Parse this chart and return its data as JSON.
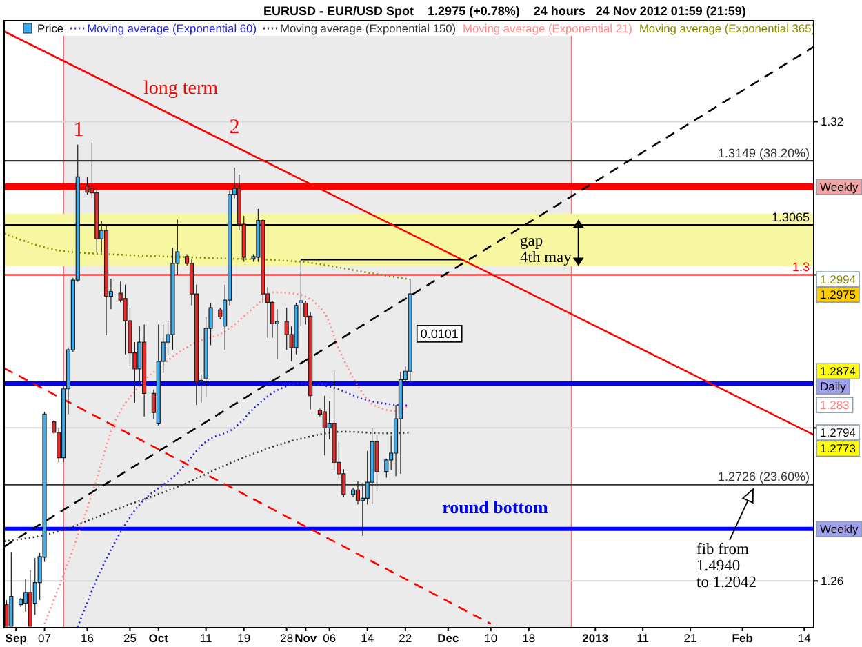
{
  "chart_data": {
    "type": "candlestick",
    "title": "EURUSD - EUR/USD Spot    1.2975 (+0.78%)    24 hours   24 Nov 2012 01:59 (21:59)",
    "xlim": [
      "2012-08-29T12:00",
      "2013-02-16"
    ],
    "xticks": [
      {
        "value": "2012-09-01",
        "label": "Sep"
      },
      {
        "value": "2012-09-07",
        "label": "07"
      },
      {
        "value": "2012-09-16",
        "label": "16"
      },
      {
        "value": "2012-09-25",
        "label": "25"
      },
      {
        "value": "2012-10-01",
        "label": "Oct"
      },
      {
        "value": "2012-10-11",
        "label": "11"
      },
      {
        "value": "2012-10-19",
        "label": "19"
      },
      {
        "value": "2012-10-28",
        "label": "28"
      },
      {
        "value": "2012-11-01",
        "label": "Nov"
      },
      {
        "value": "2012-11-06",
        "label": "06"
      },
      {
        "value": "2012-11-14",
        "label": "14"
      },
      {
        "value": "2012-11-22",
        "label": "22"
      },
      {
        "value": "2012-12-01",
        "label": "Dec"
      },
      {
        "value": "2012-12-10",
        "label": "10"
      },
      {
        "value": "2012-12-18",
        "label": "18"
      },
      {
        "value": "2013-01-01",
        "label": "2013"
      },
      {
        "value": "2013-01-11",
        "label": "11"
      },
      {
        "value": "2013-01-21",
        "label": "21"
      },
      {
        "value": "2013-02-01",
        "label": "Feb"
      },
      {
        "value": "2013-02-14",
        "label": "14"
      }
    ],
    "ylim": [
      1.2539,
      1.3332
    ],
    "yticks": [
      1.26,
      {
        "value": 1.28,
        "label": null
      },
      {
        "value": 1.3,
        "label": null
      },
      1.32
    ],
    "grid": "y",
    "legend": "top left",
    "bands": [
      {
        "axis": "x",
        "from": "2012-09-11",
        "to": "2012-12-27",
        "color": "#ebebeb"
      },
      {
        "axis": "y",
        "from": 1.3011,
        "to": 1.308,
        "color": "#f7f7a1"
      }
    ],
    "ref_lines": [
      {
        "axis": "y",
        "value": 1.3149,
        "label": "1.3149 (38.20%)",
        "color": "#333333"
      },
      {
        "axis": "y",
        "value": 1.3115,
        "label": "Weekly",
        "color": "#ff0000"
      },
      {
        "axis": "y",
        "value": 1.3065,
        "label": "1.3065",
        "color": "#000000"
      },
      {
        "axis": "y",
        "value": 1.3,
        "label": "1.3",
        "color": "#ff0000"
      },
      {
        "axis": "y",
        "value": 1.2858,
        "label": "Daily",
        "color": "#0000ff"
      },
      {
        "axis": "y",
        "value": 1.2726,
        "label": "1.2726 (23.60%)",
        "color": "#333333"
      },
      {
        "axis": "y",
        "value": 1.2668,
        "label": "Weekly",
        "color": "#0000ff"
      }
    ],
    "series": [
      {
        "name": "Price",
        "x": [
          "2012-08-30",
          "2012-08-31",
          "2012-09-02",
          "2012-09-03",
          "2012-09-04",
          "2012-09-05",
          "2012-09-06",
          "2012-09-07",
          "2012-09-09",
          "2012-09-10",
          "2012-09-11",
          "2012-09-12",
          "2012-09-13",
          "2012-09-14",
          "2012-09-16",
          "2012-09-17",
          "2012-09-18",
          "2012-09-19",
          "2012-09-20",
          "2012-09-21",
          "2012-09-23",
          "2012-09-24",
          "2012-09-25",
          "2012-09-26",
          "2012-09-27",
          "2012-09-28",
          "2012-09-30",
          "2012-10-01",
          "2012-10-02",
          "2012-10-03",
          "2012-10-04",
          "2012-10-05",
          "2012-10-07",
          "2012-10-08",
          "2012-10-09",
          "2012-10-10",
          "2012-10-11",
          "2012-10-12",
          "2012-10-14",
          "2012-10-15",
          "2012-10-16",
          "2012-10-17",
          "2012-10-18",
          "2012-10-19",
          "2012-10-21",
          "2012-10-22",
          "2012-10-23",
          "2012-10-24",
          "2012-10-25",
          "2012-10-26",
          "2012-10-28",
          "2012-10-29",
          "2012-10-30",
          "2012-10-31",
          "2012-11-01",
          "2012-11-02",
          "2012-11-04",
          "2012-11-05",
          "2012-11-06",
          "2012-11-07",
          "2012-11-08",
          "2012-11-09",
          "2012-11-11",
          "2012-11-12",
          "2012-11-13",
          "2012-11-14",
          "2012-11-15",
          "2012-11-16",
          "2012-11-18",
          "2012-11-19",
          "2012-11-20",
          "2012-11-21",
          "2012-11-22",
          "2012-11-23"
        ],
        "ohlc": [
          [
            1.2569,
            1.2575,
            1.2541,
            1.2541
          ],
          [
            1.2541,
            1.2638,
            1.2541,
            1.258
          ],
          [
            1.2569,
            1.2578,
            1.2566,
            1.2576
          ],
          [
            1.2571,
            1.2602,
            1.256,
            1.2585
          ],
          [
            1.2585,
            1.2614,
            1.2541,
            1.2541
          ],
          [
            1.2571,
            1.263,
            1.2556,
            1.2598
          ],
          [
            1.2598,
            1.2637,
            1.2575,
            1.2632
          ],
          [
            1.2631,
            1.2821,
            1.2625,
            1.2818
          ],
          [
            1.2808,
            1.281,
            1.2792,
            1.2794
          ],
          [
            1.2794,
            1.28,
            1.2755,
            1.2761
          ],
          [
            1.2761,
            1.2854,
            1.2755,
            1.2851
          ],
          [
            1.2851,
            1.2905,
            1.2818,
            1.2902
          ],
          [
            1.2902,
            1.2996,
            1.2899,
            1.2993
          ],
          [
            1.2993,
            1.317,
            1.2991,
            1.3128
          ],
          [
            1.3116,
            1.3128,
            1.3105,
            1.3108
          ],
          [
            1.3113,
            1.3173,
            1.31,
            1.3107
          ],
          [
            1.3107,
            1.311,
            1.3029,
            1.3047
          ],
          [
            1.3047,
            1.307,
            1.3029,
            1.3058
          ],
          [
            1.3058,
            1.3065,
            1.2921,
            1.2972
          ],
          [
            1.2972,
            1.2995,
            1.2955,
            1.2978
          ],
          [
            1.2976,
            1.2991,
            1.2964,
            1.2967
          ],
          [
            1.2969,
            1.2987,
            1.2896,
            1.294
          ],
          [
            1.294,
            1.2957,
            1.2881,
            1.2898
          ],
          [
            1.2898,
            1.2912,
            1.2833,
            1.2877
          ],
          [
            1.2877,
            1.2933,
            1.286,
            1.2912
          ],
          [
            1.2912,
            1.2935,
            1.2815,
            1.2845
          ],
          [
            1.2845,
            1.285,
            1.2812,
            1.282
          ],
          [
            1.2806,
            1.2935,
            1.2803,
            1.2887
          ],
          [
            1.2887,
            1.2935,
            1.2872,
            1.2912
          ],
          [
            1.2912,
            1.294,
            1.2895,
            1.2922
          ],
          [
            1.2922,
            1.3035,
            1.2902,
            1.3015
          ],
          [
            1.3015,
            1.3072,
            1.3,
            1.303
          ],
          [
            1.3024,
            1.3027,
            1.3012,
            1.3015
          ],
          [
            1.3015,
            1.302,
            1.296,
            1.2975
          ],
          [
            1.2975,
            1.2987,
            1.283,
            1.286
          ],
          [
            1.286,
            1.287,
            1.2833,
            1.2862
          ],
          [
            1.2865,
            1.2945,
            1.284,
            1.293
          ],
          [
            1.293,
            1.2963,
            1.2908,
            1.2957
          ],
          [
            1.2954,
            1.2957,
            1.2942,
            1.2945
          ],
          [
            1.2933,
            1.2987,
            1.2902,
            1.2967
          ],
          [
            1.2967,
            1.311,
            1.296,
            1.3105
          ],
          [
            1.3105,
            1.314,
            1.31,
            1.3113
          ],
          [
            1.3113,
            1.3131,
            1.3058,
            1.3066
          ],
          [
            1.3066,
            1.3077,
            1.3017,
            1.3023
          ],
          [
            1.3021,
            1.3027,
            1.3017,
            1.3024
          ],
          [
            1.3023,
            1.3086,
            1.3017,
            1.3071
          ],
          [
            1.3071,
            1.3073,
            1.2963,
            1.2975
          ],
          [
            1.2975,
            1.2984,
            1.2918,
            1.2964
          ],
          [
            1.2964,
            1.2966,
            1.2918,
            1.2936
          ],
          [
            1.2936,
            1.2955,
            1.289,
            1.2939
          ],
          [
            1.2939,
            1.2957,
            1.2902,
            1.2922
          ],
          [
            1.2922,
            1.2933,
            1.2887,
            1.2905
          ],
          [
            1.2905,
            1.2963,
            1.2896,
            1.296
          ],
          [
            1.2963,
            1.302,
            1.2933,
            1.2966
          ],
          [
            1.2963,
            1.2966,
            1.2935,
            1.2945
          ],
          [
            1.2946,
            1.2951,
            1.2824,
            1.2842
          ],
          [
            1.2823,
            1.2825,
            1.2815,
            1.2818
          ],
          [
            1.2821,
            1.2842,
            1.2764,
            1.28
          ],
          [
            1.28,
            1.2835,
            1.2785,
            1.2806
          ],
          [
            1.2806,
            1.2875,
            1.2745,
            1.2755
          ],
          [
            1.2755,
            1.2782,
            1.2734,
            1.274
          ],
          [
            1.274,
            1.2746,
            1.271,
            1.2713
          ],
          [
            1.2713,
            1.2722,
            1.271,
            1.2719
          ],
          [
            1.2719,
            1.273,
            1.27,
            1.2705
          ],
          [
            1.2705,
            1.2728,
            1.2659,
            1.2708
          ],
          [
            1.2708,
            1.277,
            1.27,
            1.2729
          ],
          [
            1.2729,
            1.28,
            1.2701,
            1.2782
          ],
          [
            1.2782,
            1.279,
            1.272,
            1.2743
          ],
          [
            1.2743,
            1.276,
            1.2735,
            1.2758
          ],
          [
            1.2758,
            1.279,
            1.2745,
            1.2767
          ],
          [
            1.2767,
            1.283,
            1.2737,
            1.2812
          ],
          [
            1.2812,
            1.2873,
            1.274,
            1.2863
          ],
          [
            1.2863,
            1.288,
            1.2855,
            1.2874
          ],
          [
            1.2874,
            1.2995,
            1.286,
            1.2975
          ]
        ],
        "colors": [
          "#ec2a2a",
          "#3aaef0",
          "#3aaef0",
          "#3aaef0",
          "#ec2a2a",
          "#3aaef0",
          "#3aaef0",
          "#3aaef0",
          "#ec2a2a",
          "#ec2a2a",
          "#3aaef0",
          "#3aaef0",
          "#3aaef0",
          "#3aaef0",
          "#ec2a2a",
          "#ec2a2a",
          "#ec2a2a",
          "#3aaef0",
          "#ec2a2a",
          "#3aaef0",
          "#ec2a2a",
          "#ec2a2a",
          "#ec2a2a",
          "#ec2a2a",
          "#3aaef0",
          "#ec2a2a",
          "#ec2a2a",
          "#3aaef0",
          "#3aaef0",
          "#3aaef0",
          "#3aaef0",
          "#3aaef0",
          "#ec2a2a",
          "#ec2a2a",
          "#ec2a2a",
          "#3aaef0",
          "#3aaef0",
          "#3aaef0",
          "#ec2a2a",
          "#3aaef0",
          "#3aaef0",
          "#3aaef0",
          "#ec2a2a",
          "#ec2a2a",
          "#3aaef0",
          "#3aaef0",
          "#ec2a2a",
          "#ec2a2a",
          "#ec2a2a",
          "#3aaef0",
          "#ec2a2a",
          "#ec2a2a",
          "#3aaef0",
          "#3aaef0",
          "#ec2a2a",
          "#ec2a2a",
          "#ec2a2a",
          "#ec2a2a",
          "#3aaef0",
          "#ec2a2a",
          "#ec2a2a",
          "#ec2a2a",
          "#3aaef0",
          "#ec2a2a",
          "#3aaef0",
          "#3aaef0",
          "#3aaef0",
          "#ec2a2a",
          "#3aaef0",
          "#3aaef0",
          "#3aaef0",
          "#3aaef0",
          "#3aaef0",
          "#3aaef0"
        ]
      },
      {
        "name": "Moving average (Exponential 60)",
        "type": "line",
        "color": "#2424d6",
        "line_style": "dotted",
        "x": [
          "2012-09-14",
          "2012-09-18",
          "2012-09-26",
          "2012-10-05",
          "2012-10-11",
          "2012-10-17",
          "2012-10-22",
          "2012-10-26",
          "2012-10-31",
          "2012-11-06",
          "2012-11-14",
          "2012-11-23"
        ],
        "values": [
          1.254,
          1.2602,
          1.2692,
          1.2741,
          1.2782,
          1.28,
          1.2831,
          1.2849,
          1.2858,
          1.2854,
          1.2836,
          1.2829
        ]
      },
      {
        "name": "Moving average (Exponential 150)",
        "type": "line",
        "color": "#333333",
        "line_style": "dotted",
        "x": [
          "2012-08-29T12:00",
          "2012-09-07",
          "2012-09-24",
          "2012-10-05",
          "2012-10-18",
          "2012-10-31",
          "2012-11-09",
          "2012-11-18",
          "2012-11-23"
        ],
        "values": [
          1.2652,
          1.266,
          1.2698,
          1.2723,
          1.2759,
          1.2786,
          1.2795,
          1.2793,
          1.2794
        ]
      },
      {
        "name": "Moving average (Exponential 21)",
        "type": "line",
        "color": "#ff8a8a",
        "line_style": "dotted",
        "x": [
          "2012-09-07",
          "2012-09-13",
          "2012-09-18",
          "2012-09-21",
          "2012-09-27",
          "2012-10-01",
          "2012-10-08",
          "2012-10-15",
          "2012-10-22",
          "2012-10-25",
          "2012-10-30",
          "2012-11-05",
          "2012-11-08",
          "2012-11-12",
          "2012-11-15",
          "2012-11-20",
          "2012-11-23"
        ],
        "values": [
          1.2544,
          1.2642,
          1.2733,
          1.2795,
          1.2855,
          1.2878,
          1.2909,
          1.2926,
          1.2962,
          1.2977,
          1.2975,
          1.295,
          1.2903,
          1.2855,
          1.2831,
          1.2822,
          1.283
        ]
      },
      {
        "name": "Moving average (Exponential 365)",
        "type": "line",
        "color": "#8a8a00",
        "line_style": "dotted",
        "x": [
          "2012-08-29T12:00",
          "2012-09-11",
          "2012-09-24",
          "2012-10-12",
          "2012-10-31",
          "2012-11-13",
          "2012-11-23"
        ],
        "values": [
          1.3054,
          1.3031,
          1.3026,
          1.3022,
          1.3017,
          1.3004,
          1.2994
        ]
      },
      {
        "type": "line",
        "color": "#ff0000",
        "line_style": "solid",
        "x": [
          "2012-08-29T12:00",
          "2013-02-16"
        ],
        "values": [
          1.3318,
          1.2791
        ]
      },
      {
        "type": "line",
        "color": "#ff0000",
        "line_style": "dashed",
        "x": [
          "2012-08-29T12:00",
          "2012-12-10"
        ],
        "values": [
          1.2878,
          1.2544
        ]
      },
      {
        "type": "line",
        "color": "#000000",
        "line_style": "dashed",
        "x": [
          "2012-08-29T12:00",
          "2013-02-16"
        ],
        "values": [
          1.2645,
          1.3298
        ]
      },
      {
        "type": "line",
        "color": "#000000",
        "line_style": "solid",
        "x": [
          "2012-10-31",
          "2012-12-04"
        ],
        "values": [
          1.302,
          1.302
        ]
      }
    ],
    "annotations": [
      "1",
      "2",
      "long term",
      "gap\n4th may",
      {
        "text": "0.0101",
        "x": "2012-11-23",
        "y": 1.2923
      },
      "round bottom",
      "fib from\n1.4940\nto 1.2042",
      {
        "text": "1.2994",
        "y": 1.2994
      },
      {
        "text": "1.2975",
        "y": 1.2975
      },
      {
        "text": "1.2874",
        "y": 1.2874
      },
      {
        "text": "1.283",
        "y": 1.283
      },
      {
        "text": "1.2794",
        "y": 1.2794
      },
      {
        "text": "1.2773",
        "y": 1.2773
      }
    ]
  }
}
